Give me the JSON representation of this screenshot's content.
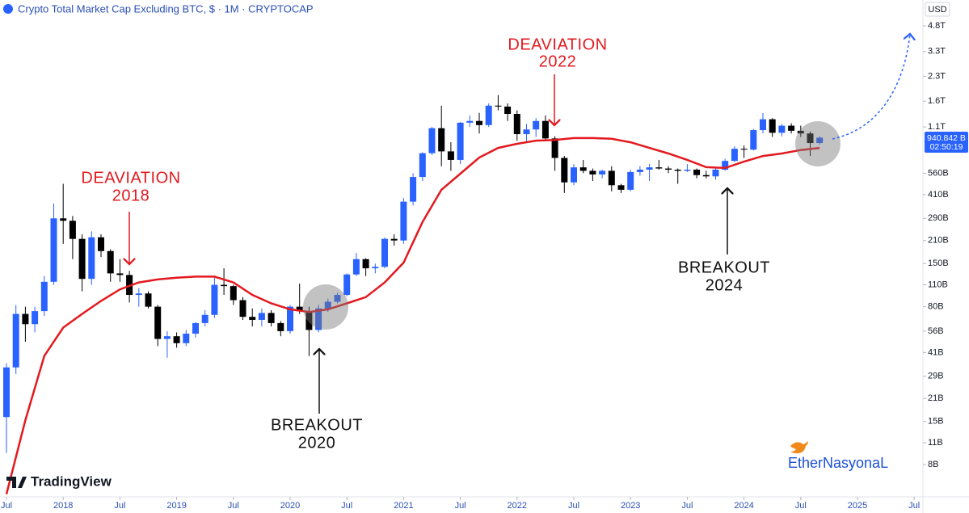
{
  "chart_data": {
    "type": "candlestick",
    "title": "Crypto Total Market Cap Excluding BTC, $ · 1M · CRYPTOCAP",
    "currency": "USD",
    "log_scale": true,
    "up_color": "#2962ff",
    "down_color": "#000000",
    "x": [
      "2017-07",
      "2017-08",
      "2017-09",
      "2017-10",
      "2017-11",
      "2017-12",
      "2018-01",
      "2018-02",
      "2018-03",
      "2018-04",
      "2018-05",
      "2018-06",
      "2018-07",
      "2018-08",
      "2018-09",
      "2018-10",
      "2018-11",
      "2018-12",
      "2019-01",
      "2019-02",
      "2019-03",
      "2019-04",
      "2019-05",
      "2019-06",
      "2019-07",
      "2019-08",
      "2019-09",
      "2019-10",
      "2019-11",
      "2019-12",
      "2020-01",
      "2020-02",
      "2020-03",
      "2020-04",
      "2020-05",
      "2020-06",
      "2020-07",
      "2020-08",
      "2020-09",
      "2020-10",
      "2020-11",
      "2020-12",
      "2021-01",
      "2021-02",
      "2021-03",
      "2021-04",
      "2021-05",
      "2021-06",
      "2021-07",
      "2021-08",
      "2021-09",
      "2021-10",
      "2021-11",
      "2021-12",
      "2022-01",
      "2022-02",
      "2022-03",
      "2022-04",
      "2022-05",
      "2022-06",
      "2022-07",
      "2022-08",
      "2022-09",
      "2022-10",
      "2022-11",
      "2022-12",
      "2023-01",
      "2023-02",
      "2023-03",
      "2023-04",
      "2023-05",
      "2023-06",
      "2023-07",
      "2023-08",
      "2023-09",
      "2023-10",
      "2023-11",
      "2023-12",
      "2024-01",
      "2024-02",
      "2024-03",
      "2024-04",
      "2024-05",
      "2024-06",
      "2024-07",
      "2024-08",
      "2024-09"
    ],
    "open": [
      16,
      33,
      72,
      62,
      75,
      115,
      290,
      280,
      215,
      120,
      220,
      180,
      130,
      127,
      95,
      97,
      80,
      50,
      52,
      47,
      54,
      63,
      71,
      110,
      108,
      88,
      69,
      66,
      73,
      63,
      56,
      80,
      75,
      57,
      78,
      86,
      95,
      128,
      160,
      140,
      143,
      215,
      210,
      370,
      530,
      750,
      1080,
      770,
      680,
      1170,
      1200,
      1130,
      1500,
      1480,
      1330,
      990,
      1060,
      1200,
      930,
      700,
      490,
      610,
      580,
      550,
      580,
      470,
      440,
      570,
      590,
      610,
      600,
      590,
      580,
      590,
      545,
      535,
      590,
      670,
      800,
      790,
      1050,
      1230,
      1010,
      1120,
      1040,
      1000,
      870
    ],
    "high": [
      35,
      82,
      80,
      80,
      125,
      360,
      480,
      300,
      230,
      240,
      230,
      185,
      160,
      135,
      105,
      100,
      82,
      56,
      55,
      57,
      64,
      76,
      125,
      140,
      110,
      92,
      78,
      78,
      76,
      65,
      82,
      112,
      80,
      82,
      90,
      98,
      130,
      175,
      162,
      150,
      220,
      230,
      390,
      560,
      760,
      1100,
      1500,
      880,
      1180,
      1300,
      1350,
      1550,
      1750,
      1550,
      1400,
      1150,
      1250,
      1300,
      960,
      720,
      640,
      680,
      600,
      590,
      620,
      480,
      590,
      620,
      640,
      680,
      620,
      600,
      640,
      600,
      580,
      600,
      690,
      830,
      840,
      1070,
      1350,
      1250,
      1150,
      1160,
      1120,
      1030,
      960
    ],
    "low": [
      9.5,
      30,
      48,
      55,
      70,
      110,
      200,
      160,
      100,
      110,
      165,
      115,
      115,
      85,
      80,
      78,
      45,
      38,
      44,
      45,
      51,
      60,
      68,
      95,
      82,
      66,
      60,
      60,
      60,
      52,
      54,
      72,
      39,
      55,
      74,
      84,
      93,
      125,
      125,
      130,
      140,
      195,
      200,
      350,
      500,
      730,
      620,
      580,
      640,
      1100,
      1000,
      1100,
      1400,
      1200,
      900,
      880,
      950,
      900,
      580,
      420,
      470,
      560,
      500,
      520,
      430,
      420,
      430,
      540,
      500,
      590,
      560,
      480,
      570,
      520,
      520,
      510,
      580,
      660,
      700,
      780,
      1000,
      950,
      960,
      1000,
      950,
      720,
      850
    ],
    "close": [
      33,
      72,
      62,
      75,
      115,
      290,
      280,
      215,
      120,
      220,
      180,
      130,
      127,
      95,
      97,
      80,
      50,
      52,
      47,
      54,
      63,
      71,
      110,
      108,
      88,
      69,
      66,
      73,
      63,
      56,
      80,
      75,
      57,
      78,
      86,
      95,
      128,
      160,
      140,
      143,
      215,
      210,
      370,
      530,
      750,
      1080,
      770,
      680,
      1170,
      1200,
      1130,
      1500,
      1480,
      1330,
      990,
      1060,
      1200,
      930,
      700,
      490,
      610,
      580,
      550,
      580,
      470,
      440,
      570,
      590,
      610,
      600,
      590,
      580,
      590,
      545,
      535,
      590,
      670,
      800,
      790,
      1050,
      1230,
      1010,
      1120,
      1040,
      1000,
      870,
      940.842
    ],
    "ma": {
      "color": "#e3191f",
      "x": [
        "2017-07",
        "2017-09",
        "2017-11",
        "2018-01",
        "2018-03",
        "2018-05",
        "2018-07",
        "2018-09",
        "2018-11",
        "2019-01",
        "2019-03",
        "2019-05",
        "2019-07",
        "2019-09",
        "2019-11",
        "2020-01",
        "2020-03",
        "2020-05",
        "2020-07",
        "2020-09",
        "2020-11",
        "2021-01",
        "2021-03",
        "2021-05",
        "2021-07",
        "2021-09",
        "2021-11",
        "2022-01",
        "2022-03",
        "2022-05",
        "2022-07",
        "2022-09",
        "2022-11",
        "2023-01",
        "2023-03",
        "2023-05",
        "2023-07",
        "2023-09",
        "2023-11",
        "2024-01",
        "2024-03",
        "2024-05",
        "2024-07",
        "2024-09"
      ],
      "values": [
        5.2,
        15.3,
        39,
        59,
        72,
        87,
        103,
        114,
        119,
        122,
        124,
        124,
        114,
        95,
        84,
        77,
        74,
        77,
        84,
        92,
        114,
        152,
        275,
        440,
        556,
        704,
        810,
        860,
        900,
        910,
        935,
        935,
        925,
        880,
        810,
        747,
        680,
        612,
        605,
        663,
        720,
        747,
        785,
        810
      ]
    },
    "ylim": [
      5,
      7000
    ],
    "yticks": [
      {
        "value": 8,
        "label": "8B"
      },
      {
        "value": 11,
        "label": "11B"
      },
      {
        "value": 15,
        "label": "15B"
      },
      {
        "value": 21,
        "label": "21B"
      },
      {
        "value": 29,
        "label": "29B"
      },
      {
        "value": 41,
        "label": "41B"
      },
      {
        "value": 56,
        "label": "56B"
      },
      {
        "value": 80,
        "label": "80B"
      },
      {
        "value": 110,
        "label": "110B"
      },
      {
        "value": 150,
        "label": "150B"
      },
      {
        "value": 210,
        "label": "210B"
      },
      {
        "value": 290,
        "label": "290B"
      },
      {
        "value": 410,
        "label": "410B"
      },
      {
        "value": 560,
        "label": "560B"
      },
      {
        "value": 1100,
        "label": "1.1T"
      },
      {
        "value": 1600,
        "label": "1.6T"
      },
      {
        "value": 2300,
        "label": "2.3T"
      },
      {
        "value": 3300,
        "label": "3.3T"
      },
      {
        "value": 4800,
        "label": "4.8T"
      }
    ],
    "xticks": [
      {
        "value": "2017-07",
        "label": "Jul"
      },
      {
        "value": "2018-01",
        "label": "2018"
      },
      {
        "value": "2018-07",
        "label": "Jul"
      },
      {
        "value": "2019-01",
        "label": "2019"
      },
      {
        "value": "2019-07",
        "label": "Jul"
      },
      {
        "value": "2020-01",
        "label": "2020"
      },
      {
        "value": "2020-07",
        "label": "Jul"
      },
      {
        "value": "2021-01",
        "label": "2021"
      },
      {
        "value": "2021-07",
        "label": "Jul"
      },
      {
        "value": "2022-01",
        "label": "2022"
      },
      {
        "value": "2022-07",
        "label": "Jul"
      },
      {
        "value": "2023-01",
        "label": "2023"
      },
      {
        "value": "2023-07",
        "label": "Jul"
      },
      {
        "value": "2024-01",
        "label": "2024"
      },
      {
        "value": "2024-07",
        "label": "Jul"
      },
      {
        "value": "2025-01",
        "label": "2025"
      },
      {
        "value": "2025-07",
        "label": "Jul"
      }
    ],
    "last_price_label": "940.842 B",
    "countdown": "02:50:19",
    "annotations": [
      [
        "DEAVIATION",
        "2018"
      ],
      [
        "DEAVIATION",
        "2022"
      ],
      [
        "BREAKOUT",
        "2020"
      ],
      [
        "BREAKOUT",
        "2024"
      ]
    ]
  },
  "branding": {
    "logo": "TradingView",
    "watermark": "EtherNasyonaL"
  }
}
